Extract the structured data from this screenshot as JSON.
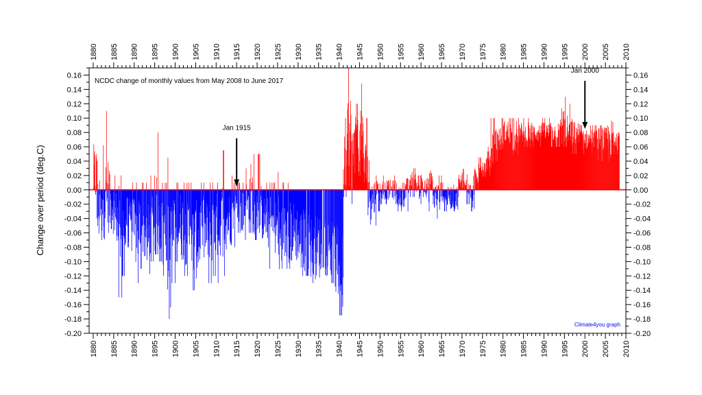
{
  "chart_data": {
    "type": "bar",
    "title": "NCDC change of monthly values from May 2008 to June 2017",
    "ylabel": "Change over period (deg.C)",
    "xlabel": "",
    "xlim": [
      1879,
      2010
    ],
    "ylim": [
      -0.2,
      0.17
    ],
    "x_tick_labels": [
      "1880",
      "1885",
      "1890",
      "1895",
      "1900",
      "1905",
      "1910",
      "1915",
      "1920",
      "1925",
      "1930",
      "1935",
      "1940",
      "1945",
      "1950",
      "1955",
      "1960",
      "1965",
      "1970",
      "1975",
      "1980",
      "1985",
      "1990",
      "1995",
      "2000",
      "2005",
      "2010"
    ],
    "y_tick_labels": [
      "0.16",
      "0.14",
      "0.12",
      "0.10",
      "0.08",
      "0.06",
      "0.04",
      "0.02",
      "0.00",
      "-0.02",
      "-0.04",
      "-0.06",
      "-0.08",
      "-0.10",
      "-0.12",
      "-0.14",
      "-0.16",
      "-0.18",
      "-0.20"
    ],
    "colors": {
      "positive": "#ff0000",
      "negative": "#0000ff",
      "zero_line": "#ff0000"
    },
    "data_range": {
      "start": "Jan 1880",
      "end": "May 2008",
      "resolution": "monthly"
    },
    "annotations": [
      {
        "text": "Jan 1915",
        "year": 1915.0,
        "value": 0.005
      },
      {
        "text": "Jan 2000",
        "year": 2000.0,
        "value": 0.085
      }
    ],
    "credit": "Climate4you graph",
    "series": [
      {
        "values_by_year": [
          [
            1880,
            0.02,
            -0.04,
            0.085
          ],
          [
            1881,
            -0.03,
            -0.07,
            0.06
          ],
          [
            1882,
            0.0,
            -0.07,
            0.13
          ],
          [
            1883,
            -0.01,
            -0.06,
            0.11
          ],
          [
            1884,
            -0.02,
            -0.07,
            0.05
          ],
          [
            1885,
            -0.04,
            -0.1,
            0.02
          ],
          [
            1886,
            -0.05,
            -0.15,
            0.02
          ],
          [
            1887,
            -0.05,
            -0.12,
            0.02
          ],
          [
            1888,
            -0.03,
            -0.08,
            0.05
          ],
          [
            1889,
            -0.05,
            -0.1,
            0.01
          ],
          [
            1890,
            -0.06,
            -0.13,
            0.01
          ],
          [
            1891,
            -0.05,
            -0.11,
            0.01
          ],
          [
            1892,
            -0.06,
            -0.11,
            0.01
          ],
          [
            1893,
            -0.07,
            -0.14,
            0.01
          ],
          [
            1894,
            -0.05,
            -0.1,
            0.02
          ],
          [
            1895,
            -0.04,
            -0.09,
            0.08
          ],
          [
            1896,
            -0.05,
            -0.1,
            0.01
          ],
          [
            1897,
            -0.06,
            -0.12,
            0.01
          ],
          [
            1898,
            -0.09,
            -0.18,
            0.045
          ],
          [
            1899,
            -0.06,
            -0.13,
            0.01
          ],
          [
            1900,
            -0.05,
            -0.1,
            0.01
          ],
          [
            1901,
            -0.05,
            -0.1,
            0.045
          ],
          [
            1902,
            -0.06,
            -0.12,
            0.01
          ],
          [
            1903,
            -0.06,
            -0.11,
            0.01
          ],
          [
            1904,
            -0.07,
            -0.14,
            0.01
          ],
          [
            1905,
            -0.07,
            -0.15,
            0.01
          ],
          [
            1906,
            -0.05,
            -0.11,
            0.01
          ],
          [
            1907,
            -0.06,
            -0.12,
            0.01
          ],
          [
            1908,
            -0.07,
            -0.13,
            0.01
          ],
          [
            1909,
            -0.06,
            -0.12,
            0.01
          ],
          [
            1910,
            -0.05,
            -0.13,
            0.01
          ],
          [
            1911,
            -0.04,
            -0.1,
            0.055
          ],
          [
            1912,
            -0.04,
            -0.12,
            0.01
          ],
          [
            1913,
            -0.04,
            -0.09,
            0.02
          ],
          [
            1914,
            -0.03,
            -0.08,
            0.01
          ],
          [
            1915,
            -0.02,
            -0.06,
            0.01
          ],
          [
            1916,
            -0.03,
            -0.08,
            0.01
          ],
          [
            1917,
            -0.02,
            -0.07,
            0.03
          ],
          [
            1918,
            -0.02,
            -0.06,
            0.115
          ],
          [
            1919,
            -0.03,
            -0.07,
            0.05
          ],
          [
            1920,
            -0.03,
            -0.06,
            0.05
          ],
          [
            1921,
            -0.04,
            -0.08,
            0.01
          ],
          [
            1922,
            -0.04,
            -0.08,
            0.01
          ],
          [
            1923,
            -0.05,
            -0.11,
            0.01
          ],
          [
            1924,
            -0.05,
            -0.1,
            0.01
          ],
          [
            1925,
            -0.07,
            -0.17,
            0.025
          ],
          [
            1926,
            -0.06,
            -0.11,
            0.01
          ],
          [
            1927,
            -0.06,
            -0.11,
            0.01
          ],
          [
            1928,
            -0.06,
            -0.12,
            0.01
          ],
          [
            1929,
            -0.06,
            -0.11,
            0.01
          ],
          [
            1930,
            -0.07,
            -0.12,
            0.01
          ],
          [
            1931,
            -0.07,
            -0.12,
            0.01
          ],
          [
            1932,
            -0.07,
            -0.12,
            0.0
          ],
          [
            1933,
            -0.08,
            -0.13,
            0.0
          ],
          [
            1934,
            -0.08,
            -0.13,
            0.0
          ],
          [
            1935,
            -0.08,
            -0.13,
            0.0
          ],
          [
            1936,
            -0.08,
            -0.12,
            0.0
          ],
          [
            1937,
            -0.08,
            -0.12,
            0.0
          ],
          [
            1938,
            -0.09,
            -0.13,
            0.0
          ],
          [
            1939,
            -0.1,
            -0.145,
            0.0
          ],
          [
            1940,
            -0.12,
            -0.175,
            0.0
          ],
          [
            1941,
            0.04,
            -0.01,
            0.1
          ],
          [
            1942,
            0.07,
            -0.03,
            0.17
          ],
          [
            1943,
            0.05,
            -0.02,
            0.13
          ],
          [
            1944,
            0.06,
            0.0,
            0.12
          ],
          [
            1945,
            0.06,
            0.0,
            0.148
          ],
          [
            1946,
            0.03,
            -0.02,
            0.1
          ],
          [
            1947,
            0.0,
            -0.08,
            0.06
          ],
          [
            1948,
            -0.01,
            -0.05,
            0.03
          ],
          [
            1949,
            0.0,
            -0.03,
            0.02
          ],
          [
            1950,
            0.0,
            -0.02,
            0.02
          ],
          [
            1951,
            0.0,
            -0.02,
            0.02
          ],
          [
            1952,
            0.0,
            -0.02,
            0.02
          ],
          [
            1953,
            0.0,
            -0.02,
            0.02
          ],
          [
            1954,
            -0.01,
            -0.03,
            0.01
          ],
          [
            1955,
            -0.01,
            -0.03,
            0.01
          ],
          [
            1956,
            0.0,
            -0.03,
            0.02
          ],
          [
            1957,
            0.01,
            -0.01,
            0.025
          ],
          [
            1958,
            0.01,
            -0.01,
            0.03
          ],
          [
            1959,
            0.0,
            -0.02,
            0.02
          ],
          [
            1960,
            0.01,
            -0.01,
            0.03
          ],
          [
            1961,
            0.0,
            -0.03,
            0.02
          ],
          [
            1962,
            0.01,
            -0.02,
            0.035
          ],
          [
            1963,
            -0.01,
            -0.04,
            0.02
          ],
          [
            1964,
            -0.01,
            -0.04,
            0.02
          ],
          [
            1965,
            -0.01,
            -0.03,
            0.01
          ],
          [
            1966,
            -0.01,
            -0.03,
            0.01
          ],
          [
            1967,
            -0.01,
            -0.03,
            0.02
          ],
          [
            1968,
            -0.01,
            -0.03,
            0.02
          ],
          [
            1969,
            0.01,
            -0.01,
            0.03
          ],
          [
            1970,
            0.02,
            0.0,
            0.05
          ],
          [
            1971,
            0.01,
            -0.02,
            0.03
          ],
          [
            1972,
            -0.01,
            -0.03,
            0.02
          ],
          [
            1973,
            0.02,
            0.0,
            0.04
          ],
          [
            1974,
            0.03,
            0.01,
            0.045
          ],
          [
            1975,
            0.03,
            0.01,
            0.05
          ],
          [
            1976,
            0.04,
            0.02,
            0.06
          ],
          [
            1977,
            0.06,
            0.03,
            0.1
          ],
          [
            1978,
            0.07,
            0.04,
            0.09
          ],
          [
            1979,
            0.07,
            0.05,
            0.1
          ],
          [
            1980,
            0.08,
            0.05,
            0.1
          ],
          [
            1981,
            0.08,
            0.05,
            0.1
          ],
          [
            1982,
            0.07,
            0.05,
            0.1
          ],
          [
            1983,
            0.08,
            0.05,
            0.1
          ],
          [
            1984,
            0.08,
            0.06,
            0.1
          ],
          [
            1985,
            0.08,
            0.06,
            0.1
          ],
          [
            1986,
            0.08,
            0.06,
            0.1
          ],
          [
            1987,
            0.08,
            0.06,
            0.1
          ],
          [
            1988,
            0.08,
            0.06,
            0.1
          ],
          [
            1989,
            0.08,
            0.06,
            0.1
          ],
          [
            1990,
            0.08,
            0.06,
            0.1
          ],
          [
            1991,
            0.08,
            0.06,
            0.1
          ],
          [
            1992,
            0.08,
            0.06,
            0.1
          ],
          [
            1993,
            0.08,
            0.06,
            0.1
          ],
          [
            1994,
            0.09,
            0.06,
            0.14
          ],
          [
            1995,
            0.08,
            0.06,
            0.13
          ],
          [
            1996,
            0.08,
            0.06,
            0.12
          ],
          [
            1997,
            0.08,
            0.05,
            0.1
          ],
          [
            1998,
            0.08,
            0.06,
            0.1
          ],
          [
            1999,
            0.07,
            0.05,
            0.09
          ],
          [
            2000,
            0.07,
            0.05,
            0.09
          ],
          [
            2001,
            0.07,
            0.05,
            0.09
          ],
          [
            2002,
            0.07,
            0.05,
            0.09
          ],
          [
            2003,
            0.07,
            0.04,
            0.09
          ],
          [
            2004,
            0.07,
            0.04,
            0.09
          ],
          [
            2005,
            0.07,
            0.04,
            0.09
          ],
          [
            2006,
            0.07,
            0.04,
            0.12
          ],
          [
            2007,
            0.07,
            0.05,
            0.09
          ],
          [
            2008,
            0.08,
            0.06,
            0.08
          ]
        ]
      }
    ]
  }
}
